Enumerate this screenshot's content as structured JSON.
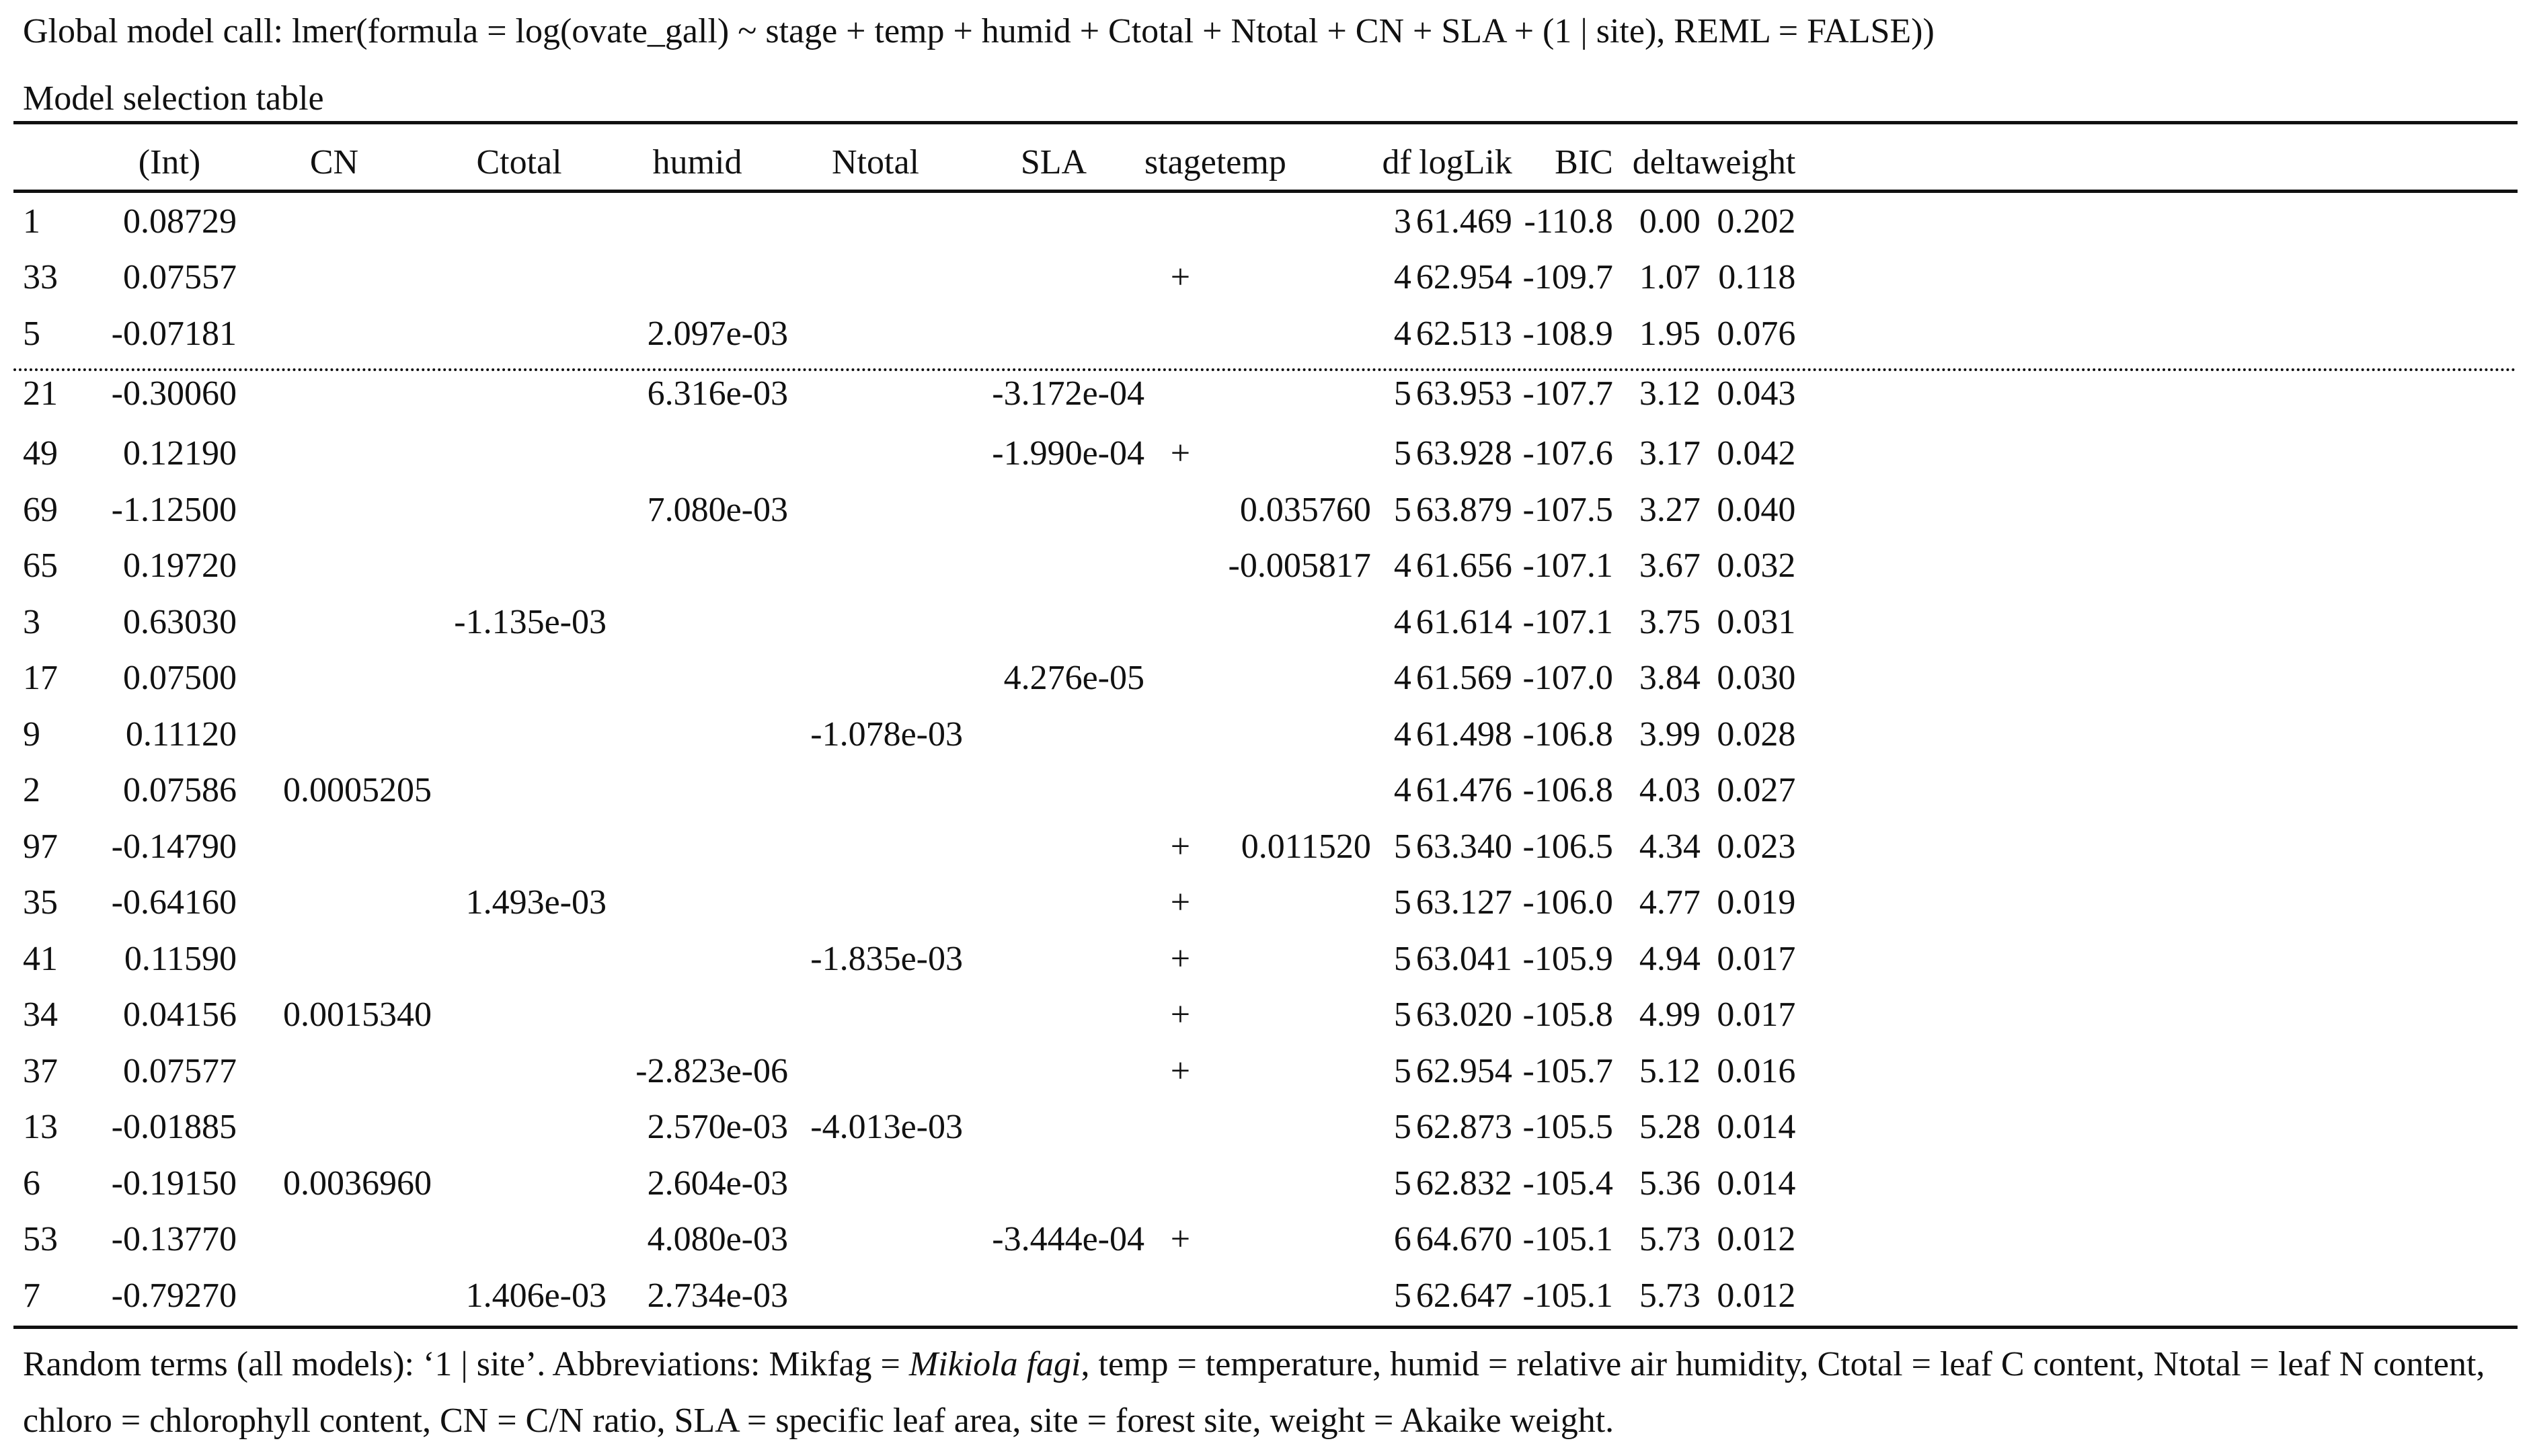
{
  "global_call": "Global model call: lmer(formula = log(ovate_gall) ~ stage + temp + humid + Ctotal + Ntotal + CN + SLA + (1 | site), REML = FALSE))",
  "selection_title": "Model selection table",
  "columns": {
    "int": "(Int)",
    "cn": "CN",
    "ctotal": "Ctotal",
    "humid": "humid",
    "ntotal": "Ntotal",
    "sla": "SLA",
    "stage": "stage",
    "temp": "temp",
    "df": "df",
    "loglik": "logLik",
    "bic": "BIC",
    "delta": "delta",
    "weight": "weight"
  },
  "rows": [
    {
      "id": "1",
      "int": "0.08729",
      "cn": "",
      "ctotal": "",
      "humid": "",
      "ntotal": "",
      "sla": "",
      "stage": "",
      "temp": "",
      "df": "3",
      "loglik": "61.469",
      "bic": "-110.8",
      "delta": "0.00",
      "weight": "0.202"
    },
    {
      "id": "33",
      "int": "0.07557",
      "cn": "",
      "ctotal": "",
      "humid": "",
      "ntotal": "",
      "sla": "",
      "stage": "+",
      "temp": "",
      "df": "4",
      "loglik": "62.954",
      "bic": "-109.7",
      "delta": "1.07",
      "weight": "0.118"
    },
    {
      "id": "5",
      "int": "-0.07181",
      "cn": "",
      "ctotal": "",
      "humid": "2.097e-03",
      "ntotal": "",
      "sla": "",
      "stage": "",
      "temp": "",
      "df": "4",
      "loglik": "62.513",
      "bic": "-108.9",
      "delta": "1.95",
      "weight": "0.076"
    },
    {
      "id": "21",
      "int": "-0.30060",
      "cn": "",
      "ctotal": "",
      "humid": "6.316e-03",
      "ntotal": "",
      "sla": "-3.172e-04",
      "stage": "",
      "temp": "",
      "df": "5",
      "loglik": "63.953",
      "bic": "-107.7",
      "delta": "3.12",
      "weight": "0.043"
    },
    {
      "id": "49",
      "int": "0.12190",
      "cn": "",
      "ctotal": "",
      "humid": "",
      "ntotal": "",
      "sla": "-1.990e-04",
      "stage": "+",
      "temp": "",
      "df": "5",
      "loglik": "63.928",
      "bic": "-107.6",
      "delta": "3.17",
      "weight": "0.042"
    },
    {
      "id": "69",
      "int": "-1.12500",
      "cn": "",
      "ctotal": "",
      "humid": "7.080e-03",
      "ntotal": "",
      "sla": "",
      "stage": "",
      "temp": "0.035760",
      "df": "5",
      "loglik": "63.879",
      "bic": "-107.5",
      "delta": "3.27",
      "weight": "0.040"
    },
    {
      "id": "65",
      "int": "0.19720",
      "cn": "",
      "ctotal": "",
      "humid": "",
      "ntotal": "",
      "sla": "",
      "stage": "",
      "temp": "-0.005817",
      "df": "4",
      "loglik": "61.656",
      "bic": "-107.1",
      "delta": "3.67",
      "weight": "0.032"
    },
    {
      "id": "3",
      "int": "0.63030",
      "cn": "",
      "ctotal": "-1.135e-03",
      "humid": "",
      "ntotal": "",
      "sla": "",
      "stage": "",
      "temp": "",
      "df": "4",
      "loglik": "61.614",
      "bic": "-107.1",
      "delta": "3.75",
      "weight": "0.031"
    },
    {
      "id": "17",
      "int": "0.07500",
      "cn": "",
      "ctotal": "",
      "humid": "",
      "ntotal": "",
      "sla": "4.276e-05",
      "stage": "",
      "temp": "",
      "df": "4",
      "loglik": "61.569",
      "bic": "-107.0",
      "delta": "3.84",
      "weight": "0.030"
    },
    {
      "id": "9",
      "int": "0.11120",
      "cn": "",
      "ctotal": "",
      "humid": "",
      "ntotal": "-1.078e-03",
      "sla": "",
      "stage": "",
      "temp": "",
      "df": "4",
      "loglik": "61.498",
      "bic": "-106.8",
      "delta": "3.99",
      "weight": "0.028"
    },
    {
      "id": "2",
      "int": "0.07586",
      "cn": "0.0005205",
      "ctotal": "",
      "humid": "",
      "ntotal": "",
      "sla": "",
      "stage": "",
      "temp": "",
      "df": "4",
      "loglik": "61.476",
      "bic": "-106.8",
      "delta": "4.03",
      "weight": "0.027"
    },
    {
      "id": "97",
      "int": "-0.14790",
      "cn": "",
      "ctotal": "",
      "humid": "",
      "ntotal": "",
      "sla": "",
      "stage": "+",
      "temp": "0.011520",
      "df": "5",
      "loglik": "63.340",
      "bic": "-106.5",
      "delta": "4.34",
      "weight": "0.023"
    },
    {
      "id": "35",
      "int": "-0.64160",
      "cn": "",
      "ctotal": "1.493e-03",
      "humid": "",
      "ntotal": "",
      "sla": "",
      "stage": "+",
      "temp": "",
      "df": "5",
      "loglik": "63.127",
      "bic": "-106.0",
      "delta": "4.77",
      "weight": "0.019"
    },
    {
      "id": "41",
      "int": "0.11590",
      "cn": "",
      "ctotal": "",
      "humid": "",
      "ntotal": "-1.835e-03",
      "sla": "",
      "stage": "+",
      "temp": "",
      "df": "5",
      "loglik": "63.041",
      "bic": "-105.9",
      "delta": "4.94",
      "weight": "0.017"
    },
    {
      "id": "34",
      "int": "0.04156",
      "cn": "0.0015340",
      "ctotal": "",
      "humid": "",
      "ntotal": "",
      "sla": "",
      "stage": "+",
      "temp": "",
      "df": "5",
      "loglik": "63.020",
      "bic": "-105.8",
      "delta": "4.99",
      "weight": "0.017"
    },
    {
      "id": "37",
      "int": "0.07577",
      "cn": "",
      "ctotal": "",
      "humid": "-2.823e-06",
      "ntotal": "",
      "sla": "",
      "stage": "+",
      "temp": "",
      "df": "5",
      "loglik": "62.954",
      "bic": "-105.7",
      "delta": "5.12",
      "weight": "0.016"
    },
    {
      "id": "13",
      "int": "-0.01885",
      "cn": "",
      "ctotal": "",
      "humid": "2.570e-03",
      "ntotal": "-4.013e-03",
      "sla": "",
      "stage": "",
      "temp": "",
      "df": "5",
      "loglik": "62.873",
      "bic": "-105.5",
      "delta": "5.28",
      "weight": "0.014"
    },
    {
      "id": "6",
      "int": "-0.19150",
      "cn": "0.0036960",
      "ctotal": "",
      "humid": "2.604e-03",
      "ntotal": "",
      "sla": "",
      "stage": "",
      "temp": "",
      "df": "5",
      "loglik": "62.832",
      "bic": "-105.4",
      "delta": "5.36",
      "weight": "0.014"
    },
    {
      "id": "53",
      "int": "-0.13770",
      "cn": "",
      "ctotal": "",
      "humid": "4.080e-03",
      "ntotal": "",
      "sla": "-3.444e-04",
      "stage": "+",
      "temp": "",
      "df": "6",
      "loglik": "64.670",
      "bic": "-105.1",
      "delta": "5.73",
      "weight": "0.012"
    },
    {
      "id": "7",
      "int": "-0.79270",
      "cn": "",
      "ctotal": "1.406e-03",
      "humid": "2.734e-03",
      "ntotal": "",
      "sla": "",
      "stage": "",
      "temp": "",
      "df": "5",
      "loglik": "62.647",
      "bic": "-105.1",
      "delta": "5.73",
      "weight": "0.012"
    }
  ],
  "footnote": {
    "part1": "Random terms (all models): ‘1 | site’. Abbreviations: Mikfag = ",
    "species": "Mikiola fagi",
    "part2": ", temp = temperature, humid = relative air humidity, Ctotal = leaf C content, Ntotal = leaf N content, chloro = chlorophyll content, CN = C/N ratio, SLA = specific leaf area, site = forest site, weight = Akaike weight."
  }
}
